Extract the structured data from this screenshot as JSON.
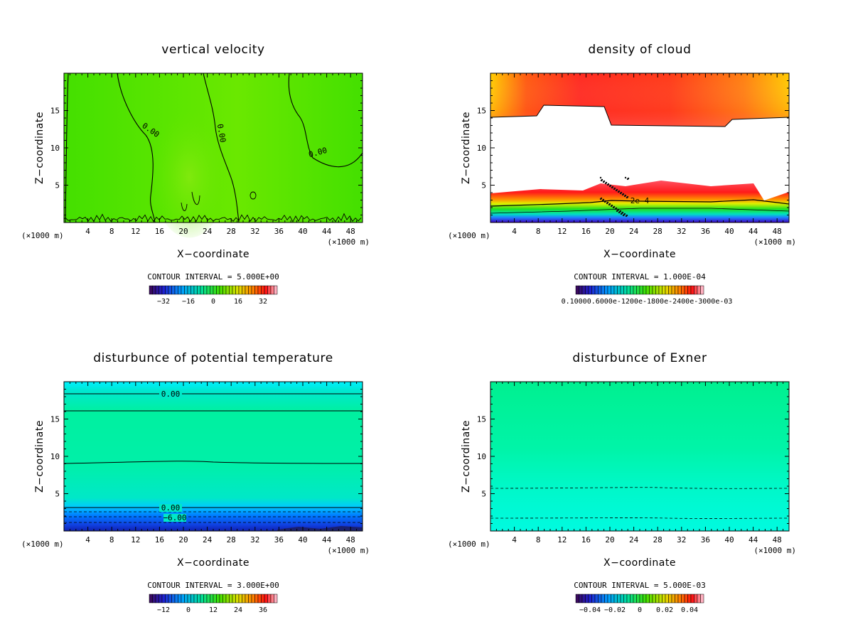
{
  "panels": [
    {
      "title": "vertical velocity",
      "contour_interval": "CONTOUR INTERVAL = 5.000E+00",
      "colorbar": {
        "ticks": [
          "−32",
          "−16",
          "0",
          "16",
          "32"
        ],
        "palette": "rainbow"
      },
      "contour_labels": [
        "0.00",
        "0.00",
        "0.00"
      ]
    },
    {
      "title": "density of cloud",
      "contour_interval": "CONTOUR INTERVAL = 1.000E-04",
      "colorbar": {
        "ticks": [
          "0.10000.6000e-1200e-1800e-2400e-3000e-03"
        ],
        "palette": "rainbow-dark"
      },
      "contour_labels": [
        "2e-4"
      ]
    },
    {
      "title": "disturbunce of potential temperature",
      "contour_interval": "CONTOUR INTERVAL = 3.000E+00",
      "colorbar": {
        "ticks": [
          "−12",
          "0",
          "12",
          "24",
          "36"
        ],
        "palette": "rainbow"
      },
      "contour_labels": [
        "0.00",
        "0.00",
        "−6.00"
      ]
    },
    {
      "title": "disturbunce of Exner",
      "contour_interval": "CONTOUR INTERVAL = 5.000E-03",
      "colorbar": {
        "ticks": [
          "−0.04",
          "−0.02",
          "0",
          "0.02",
          "0.04"
        ],
        "palette": "rainbow-dark"
      },
      "contour_labels": []
    }
  ],
  "axes": {
    "xlabel": "X−coordinate",
    "ylabel": "Z−coordinate",
    "unit_left": "(×1000 m)",
    "unit_right": "(×1000 m)",
    "xticks": [
      "4",
      "8",
      "12",
      "16",
      "20",
      "24",
      "28",
      "32",
      "36",
      "40",
      "44",
      "48"
    ],
    "yticks": [
      "5",
      "10",
      "15"
    ]
  },
  "chart_data": [
    {
      "type": "heatmap",
      "title": "vertical velocity",
      "xlabel": "X−coordinate",
      "ylabel": "Z−coordinate",
      "x_unit": "(×1000 m)",
      "xlim": [
        0,
        50
      ],
      "ylim": [
        0,
        20
      ],
      "xticks": [
        4,
        8,
        12,
        16,
        20,
        24,
        28,
        32,
        36,
        40,
        44,
        48
      ],
      "yticks": [
        5,
        10,
        15
      ],
      "contour_interval": 5.0,
      "colorbar_ticks": [
        -32,
        -16,
        0,
        16,
        32
      ],
      "contour_labels": [
        "0.00",
        "0.00",
        "0.00"
      ]
    },
    {
      "type": "heatmap",
      "title": "density of cloud",
      "xlabel": "X−coordinate",
      "ylabel": "Z−coordinate",
      "x_unit": "(×1000 m)",
      "xlim": [
        0,
        50
      ],
      "ylim": [
        0,
        20
      ],
      "xticks": [
        4,
        8,
        12,
        16,
        20,
        24,
        28,
        32,
        36,
        40,
        44,
        48
      ],
      "yticks": [
        5,
        10,
        15
      ],
      "contour_interval": 0.0001,
      "colorbar_ticks_text": "0.10000.6000e-1200e-1800e-2400e-3000e-03",
      "contour_labels": [
        "2e-4"
      ]
    },
    {
      "type": "heatmap",
      "title": "disturbunce of potential temperature",
      "xlabel": "X−coordinate",
      "ylabel": "Z−coordinate",
      "x_unit": "(×1000 m)",
      "xlim": [
        0,
        50
      ],
      "ylim": [
        0,
        20
      ],
      "xticks": [
        4,
        8,
        12,
        16,
        20,
        24,
        28,
        32,
        36,
        40,
        44,
        48
      ],
      "yticks": [
        5,
        10,
        15
      ],
      "contour_interval": 3.0,
      "colorbar_ticks": [
        -12,
        0,
        12,
        24,
        36
      ],
      "contour_labels": [
        "0.00",
        "0.00",
        "-6.00"
      ]
    },
    {
      "type": "heatmap",
      "title": "disturbunce of Exner",
      "xlabel": "X−coordinate",
      "ylabel": "Z−coordinate",
      "x_unit": "(×1000 m)",
      "xlim": [
        0,
        50
      ],
      "ylim": [
        0,
        20
      ],
      "xticks": [
        4,
        8,
        12,
        16,
        20,
        24,
        28,
        32,
        36,
        40,
        44,
        48
      ],
      "yticks": [
        5,
        10,
        15
      ],
      "contour_interval": 0.005,
      "colorbar_ticks": [
        -0.04,
        -0.02,
        0,
        0.02,
        0.04
      ],
      "contour_labels": []
    }
  ]
}
